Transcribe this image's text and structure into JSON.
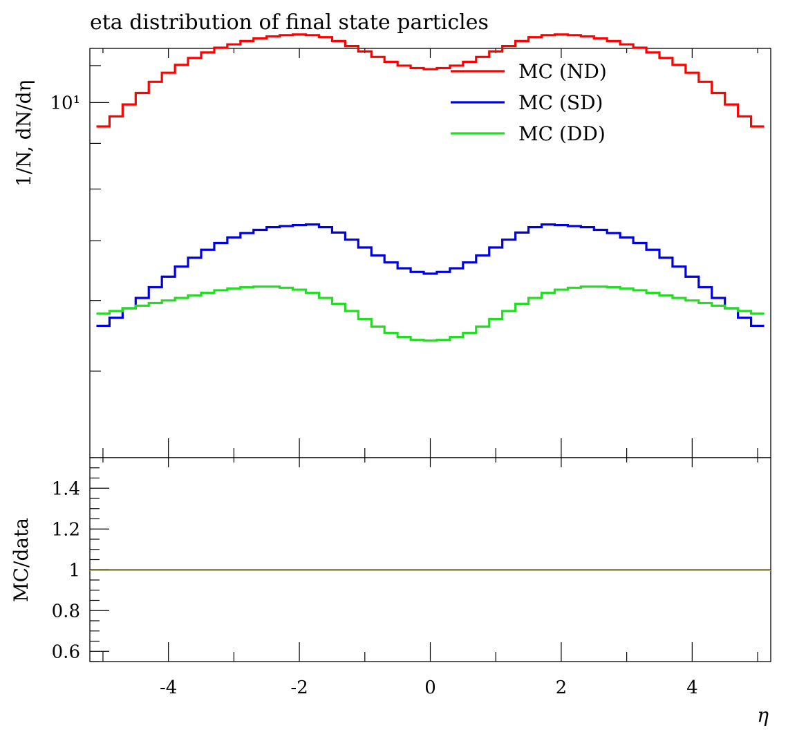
{
  "chart_data": [
    {
      "type": "line",
      "title": "eta distribution of final state particles",
      "ylabel": "1/N, dN/dη",
      "y_scale": "log",
      "ylim": [
        4.0,
        11.5
      ],
      "y_tick_labels": [
        "10¹"
      ],
      "xlim": [
        -5.2,
        5.2
      ],
      "x_tick_labels": [
        "-4",
        "-2",
        "0",
        "2",
        "4"
      ],
      "grid": false,
      "legend_placement": "top-right",
      "x": [
        -5.0,
        -4.8,
        -4.6,
        -4.4,
        -4.2,
        -4.0,
        -3.8,
        -3.6,
        -3.4,
        -3.2,
        -3.0,
        -2.8,
        -2.6,
        -2.4,
        -2.2,
        -2.0,
        -1.8,
        -1.6,
        -1.4,
        -1.2,
        -1.0,
        -0.8,
        -0.6,
        -0.4,
        -0.2,
        0.0,
        0.2,
        0.4,
        0.6,
        0.8,
        1.0,
        1.2,
        1.4,
        1.6,
        1.8,
        2.0,
        2.2,
        2.4,
        2.6,
        2.8,
        3.0,
        3.2,
        3.4,
        3.6,
        3.8,
        4.0,
        4.2,
        4.4,
        4.6,
        4.8,
        5.0
      ],
      "series": [
        {
          "name": "MC (ND)",
          "color": "#ff0000",
          "values": [
            9.4,
            9.65,
            9.95,
            10.25,
            10.55,
            10.8,
            11.02,
            11.22,
            11.38,
            11.52,
            11.62,
            11.72,
            11.8,
            11.86,
            11.9,
            11.92,
            11.9,
            11.84,
            11.72,
            11.57,
            11.41,
            11.25,
            11.11,
            11.0,
            10.93,
            10.9,
            10.93,
            11.0,
            11.11,
            11.25,
            11.41,
            11.57,
            11.72,
            11.84,
            11.9,
            11.92,
            11.9,
            11.86,
            11.8,
            11.72,
            11.62,
            11.52,
            11.38,
            11.22,
            11.02,
            10.8,
            10.55,
            10.25,
            9.95,
            9.65,
            9.4
          ]
        },
        {
          "name": "MC (SD)",
          "color": "#0000dd",
          "values": [
            5.62,
            5.74,
            5.88,
            6.04,
            6.21,
            6.38,
            6.55,
            6.7,
            6.84,
            6.96,
            7.06,
            7.14,
            7.2,
            7.25,
            7.27,
            7.29,
            7.3,
            7.25,
            7.15,
            7.02,
            6.88,
            6.74,
            6.62,
            6.52,
            6.46,
            6.43,
            6.46,
            6.52,
            6.62,
            6.74,
            6.88,
            7.02,
            7.15,
            7.25,
            7.3,
            7.29,
            7.27,
            7.25,
            7.2,
            7.14,
            7.06,
            6.96,
            6.84,
            6.7,
            6.55,
            6.38,
            6.21,
            6.04,
            5.88,
            5.74,
            5.62
          ]
        },
        {
          "name": "MC (DD)",
          "color": "#22dd22",
          "values": [
            5.8,
            5.84,
            5.88,
            5.92,
            5.96,
            6.0,
            6.04,
            6.08,
            6.12,
            6.16,
            6.19,
            6.21,
            6.22,
            6.22,
            6.2,
            6.17,
            6.12,
            6.04,
            5.95,
            5.84,
            5.72,
            5.61,
            5.52,
            5.46,
            5.42,
            5.41,
            5.42,
            5.46,
            5.52,
            5.61,
            5.72,
            5.84,
            5.95,
            6.04,
            6.12,
            6.17,
            6.2,
            6.22,
            6.22,
            6.21,
            6.19,
            6.16,
            6.12,
            6.08,
            6.04,
            6.0,
            5.96,
            5.92,
            5.88,
            5.84,
            5.8
          ]
        }
      ]
    },
    {
      "type": "line",
      "ylabel": "MC/data",
      "xlabel": "η",
      "ylim": [
        0.55,
        1.55
      ],
      "yticks": [
        0.6,
        0.8,
        1.0,
        1.2,
        1.4
      ],
      "y_tick_labels": [
        "0.6",
        "0.8",
        "1",
        "1.2",
        "1.4"
      ],
      "xlim": [
        -5.2,
        5.2
      ],
      "x_tick_labels": [
        "-4",
        "-2",
        "0",
        "2",
        "4"
      ],
      "reference_line": {
        "y": 1.0,
        "color": "#c8c800"
      },
      "grid": false
    }
  ]
}
